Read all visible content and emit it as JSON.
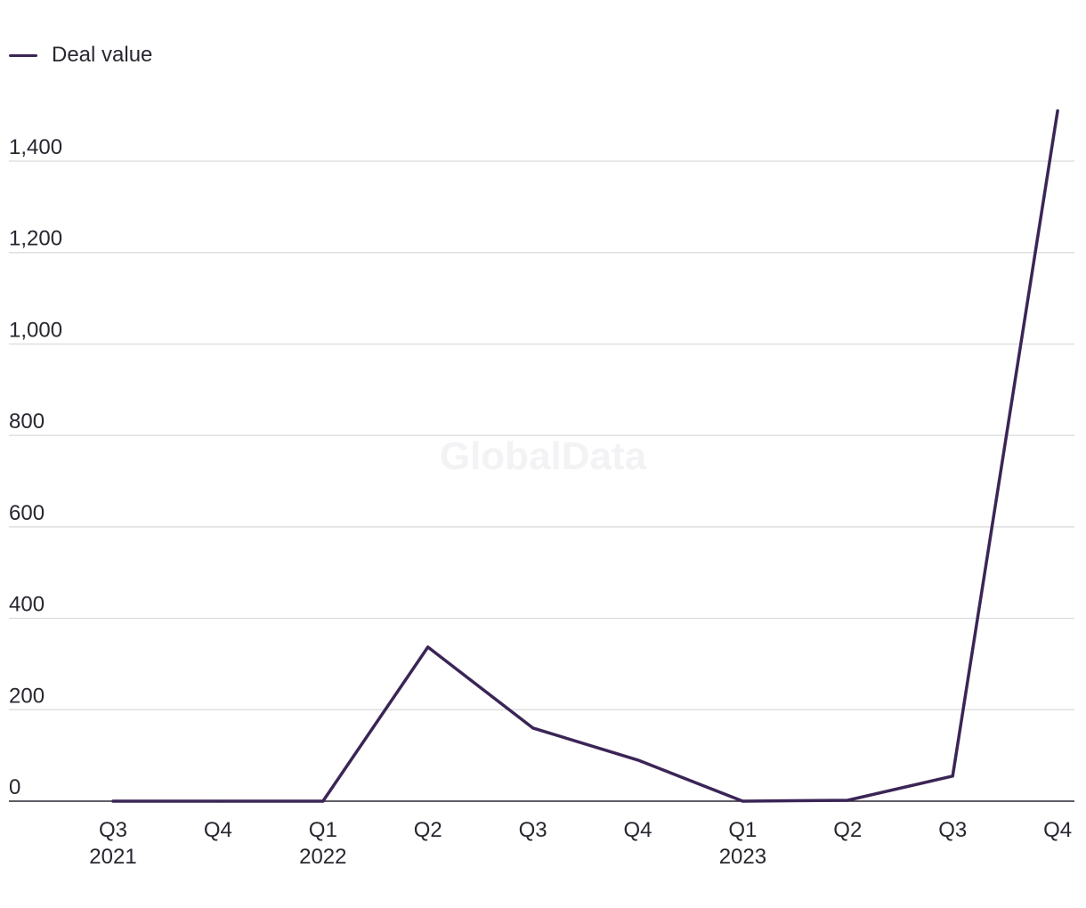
{
  "legend": {
    "series_label": "Deal value",
    "series_color": "#3b2556"
  },
  "watermark": "GlobalData",
  "chart_data": {
    "type": "line",
    "title": "",
    "xlabel": "",
    "ylabel": "",
    "categories": [
      {
        "quarter": "Q3",
        "year": "2021"
      },
      {
        "quarter": "Q4",
        "year": ""
      },
      {
        "quarter": "Q1",
        "year": "2022"
      },
      {
        "quarter": "Q2",
        "year": ""
      },
      {
        "quarter": "Q3",
        "year": ""
      },
      {
        "quarter": "Q4",
        "year": ""
      },
      {
        "quarter": "Q1",
        "year": "2023"
      },
      {
        "quarter": "Q2",
        "year": ""
      },
      {
        "quarter": "Q3",
        "year": ""
      },
      {
        "quarter": "Q4",
        "year": ""
      }
    ],
    "series": [
      {
        "name": "Deal value",
        "color": "#3b2556",
        "values": [
          0,
          0,
          0,
          337,
          160,
          90,
          0,
          2,
          55,
          1510
        ]
      }
    ],
    "y_ticks": [
      0,
      200,
      400,
      600,
      800,
      1000,
      1200,
      1400
    ],
    "ylim": [
      0,
      1400
    ],
    "grid": true,
    "legend_position": "top-left"
  }
}
